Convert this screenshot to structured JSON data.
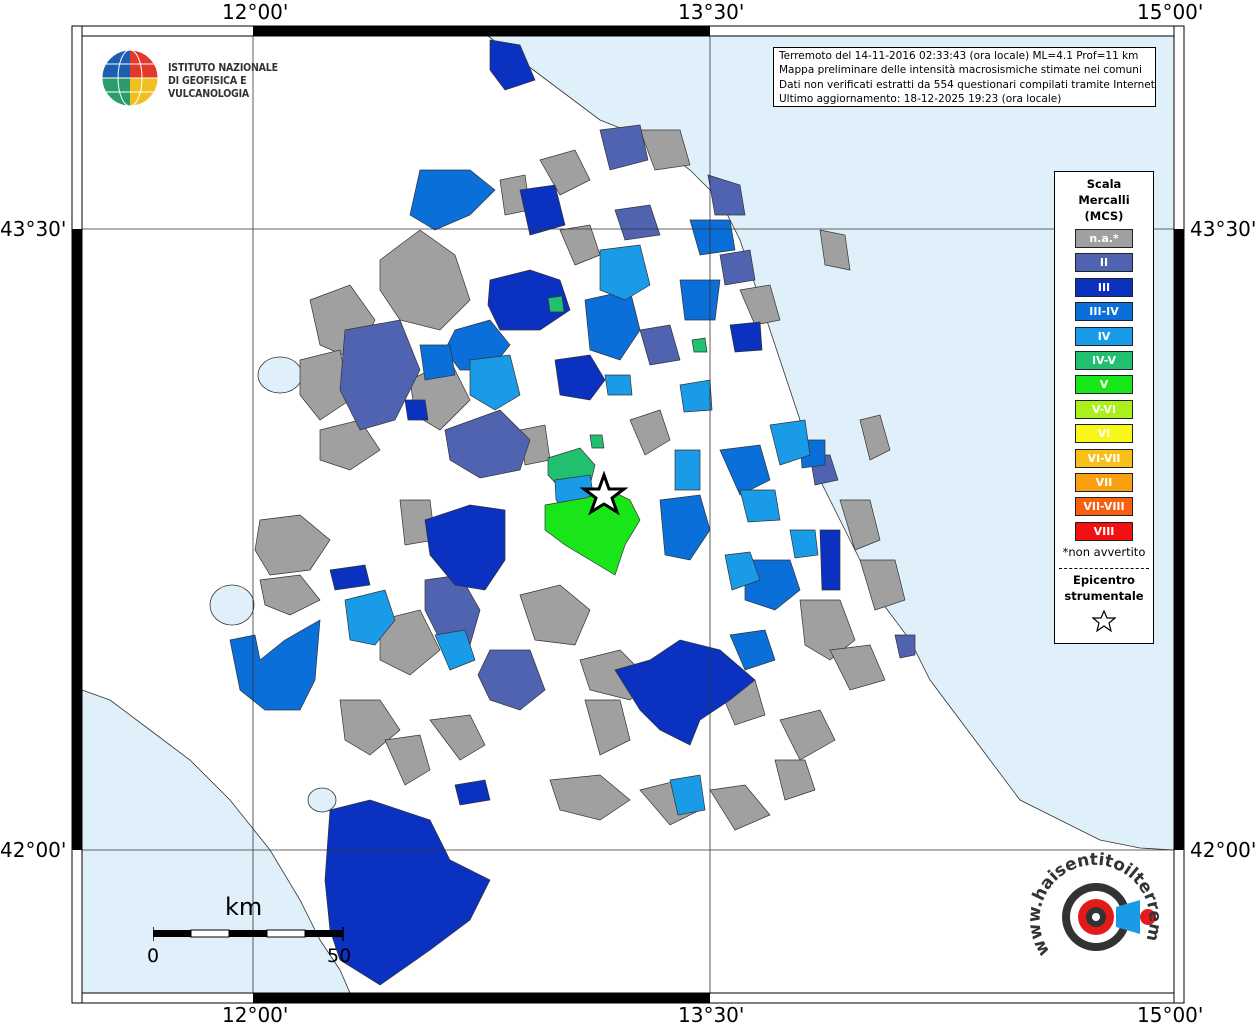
{
  "coords": {
    "top": [
      "12°00'",
      "13°30'",
      "15°00'"
    ],
    "bottom": [
      "12°00'",
      "13°30'",
      "15°00'"
    ],
    "left": [
      "43°30'",
      "42°00'"
    ],
    "right": [
      "43°30'",
      "42°00'"
    ]
  },
  "logo": {
    "line1": "ISTITUTO NAZIONALE",
    "line2": "DI GEOFISICA E VULCANOLOGIA"
  },
  "info": {
    "line1": "Terremoto del 14-11-2016 02:33:43 (ora locale) ML=4.1 Prof=11 km",
    "line2": "Mappa preliminare delle intensità macrosismiche stimate nei comuni",
    "line3": "Dati non verificati estratti da 554 questionari compilati tramite Internet.",
    "line4": "Ultimo aggiornamento: 18-12-2025 19:23 (ora locale)"
  },
  "legend": {
    "title1": "Scala",
    "title2": "Mercalli",
    "title3": "(MCS)",
    "items": [
      {
        "label": "n.a.*",
        "color": "#a0a0a0"
      },
      {
        "label": "II",
        "color": "#4f63b0"
      },
      {
        "label": "III",
        "color": "#0a31c0"
      },
      {
        "label": "III-IV",
        "color": "#0a6fd8"
      },
      {
        "label": "IV",
        "color": "#1a9be8"
      },
      {
        "label": "IV-V",
        "color": "#20c070"
      },
      {
        "label": "V",
        "color": "#19e619"
      },
      {
        "label": "V-VI",
        "color": "#aaf01a"
      },
      {
        "label": "VI",
        "color": "#f7f718"
      },
      {
        "label": "VI-VII",
        "color": "#f8c018"
      },
      {
        "label": "VII",
        "color": "#f8a010"
      },
      {
        "label": "VII-VIII",
        "color": "#f86010"
      },
      {
        "label": "VIII",
        "color": "#f41010"
      }
    ],
    "note": "*non avvertito",
    "epicenter1": "Epicentro",
    "epicenter2": "strumentale"
  },
  "scalebar": {
    "unit": "km",
    "start": "0",
    "end": "50"
  },
  "watermark": "www.haisentitoilterremoto.it",
  "colors": {
    "sea": "#dff0fb",
    "land": "#ffffff"
  }
}
